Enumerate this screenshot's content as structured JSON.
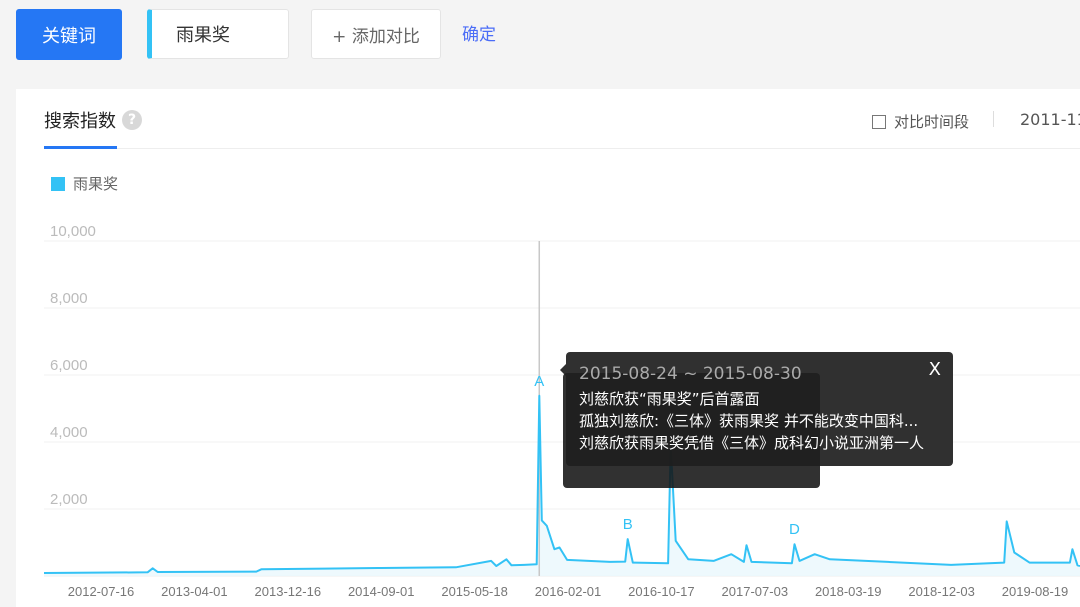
{
  "toolbar": {
    "keyword_label": "关键词",
    "keyword_value": "雨果奖",
    "add_compare_label": "+ 添加对比",
    "confirm_label": "确定"
  },
  "panel": {
    "tab_label": "搜索指数",
    "help_icon": "question-icon",
    "compare_period_label": "对比时间段",
    "date_range": "2011-11"
  },
  "tooltip": {
    "date": "2015-08-24 ~ 2015-08-30",
    "close_label": "X",
    "items": [
      "刘慈欣获“雨果奖”后首露面",
      "孤独刘慈欣:《三体》获雨果奖 并不能改变中国科...",
      "刘慈欣获雨果奖凭借《三体》成科幻小说亚洲第一人"
    ]
  },
  "chart_data": {
    "type": "area",
    "legend": [
      "雨果奖"
    ],
    "legend_placement": "top-left",
    "grid": true,
    "ylim": [
      0,
      10000
    ],
    "y_ticks": [
      "10,000",
      "8,000",
      "6,000",
      "4,000",
      "2,000"
    ],
    "y_tick_values": [
      10000,
      8000,
      6000,
      4000,
      2000
    ],
    "x_ticks": [
      "2012-07-16",
      "2013-04-01",
      "2013-12-16",
      "2014-09-01",
      "2015-05-18",
      "2016-02-01",
      "2016-10-17",
      "2017-07-03",
      "2018-03-19",
      "2018-12-03",
      "2019-08-19"
    ],
    "xlim": [
      "2011-11-21",
      "2019-09-30"
    ],
    "color": "#33c2f5",
    "series": [
      {
        "name": "雨果奖",
        "points": [
          [
            "2011-11-21",
            90
          ],
          [
            "2012-09-03",
            110
          ],
          [
            "2012-09-17",
            230
          ],
          [
            "2012-10-01",
            120
          ],
          [
            "2013-07-01",
            130
          ],
          [
            "2013-07-15",
            200
          ],
          [
            "2014-01-06",
            220
          ],
          [
            "2014-06-02",
            240
          ],
          [
            "2015-01-05",
            260
          ],
          [
            "2015-04-13",
            450
          ],
          [
            "2015-04-27",
            300
          ],
          [
            "2015-05-25",
            500
          ],
          [
            "2015-06-08",
            320
          ],
          [
            "2015-07-13",
            330
          ],
          [
            "2015-08-17",
            350
          ],
          [
            "2015-08-24",
            5380
          ],
          [
            "2015-08-31",
            1660
          ],
          [
            "2015-09-14",
            1500
          ],
          [
            "2015-10-05",
            800
          ],
          [
            "2015-10-19",
            850
          ],
          [
            "2015-11-09",
            480
          ],
          [
            "2016-03-07",
            420
          ],
          [
            "2016-04-18",
            430
          ],
          [
            "2016-04-25",
            1100
          ],
          [
            "2016-05-09",
            400
          ],
          [
            "2016-08-15",
            380
          ],
          [
            "2016-08-22",
            3900
          ],
          [
            "2016-09-05",
            1050
          ],
          [
            "2016-10-10",
            500
          ],
          [
            "2016-12-19",
            450
          ],
          [
            "2017-02-06",
            650
          ],
          [
            "2017-03-13",
            420
          ],
          [
            "2017-03-20",
            920
          ],
          [
            "2017-04-03",
            420
          ],
          [
            "2017-07-24",
            380
          ],
          [
            "2017-07-31",
            950
          ],
          [
            "2017-08-14",
            450
          ],
          [
            "2017-09-25",
            650
          ],
          [
            "2017-11-06",
            500
          ],
          [
            "2018-04-16",
            420
          ],
          [
            "2018-10-08",
            330
          ],
          [
            "2019-01-21",
            380
          ],
          [
            "2019-03-04",
            400
          ],
          [
            "2019-03-11",
            1630
          ],
          [
            "2019-04-01",
            700
          ],
          [
            "2019-05-13",
            400
          ],
          [
            "2019-09-02",
            400
          ],
          [
            "2019-09-09",
            800
          ],
          [
            "2019-09-23",
            320
          ],
          [
            "2019-09-30",
            300
          ]
        ]
      }
    ],
    "annotations": [
      {
        "label": "A",
        "date": "2015-08-24",
        "value": 5380
      },
      {
        "label": "B",
        "date": "2016-04-25",
        "value": 1100
      },
      {
        "label": "D",
        "date": "2017-07-31",
        "value": 950
      }
    ],
    "hover_date": "2015-08-24"
  }
}
